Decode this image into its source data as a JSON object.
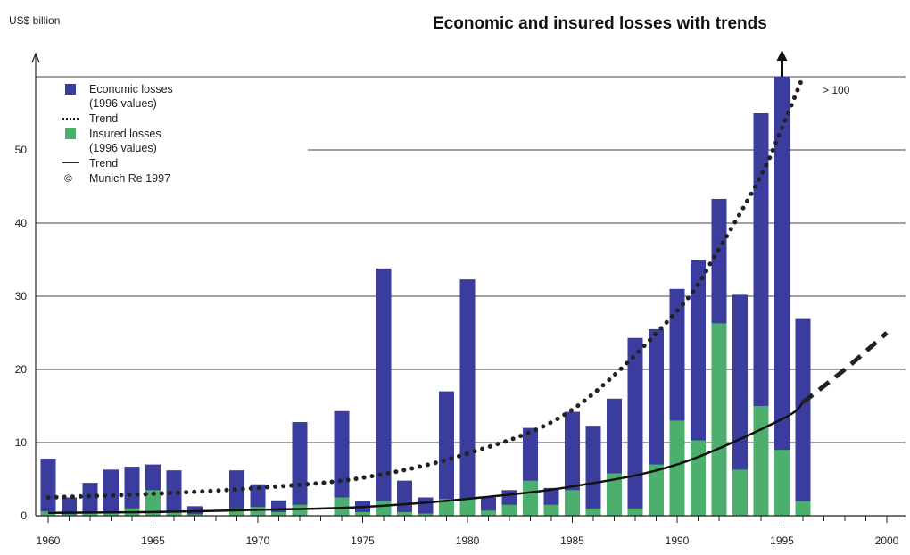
{
  "chart_data": {
    "type": "bar",
    "title": "Economic and insured losses with trends",
    "ylabel": "US$ billion",
    "ylim": [
      0,
      60
    ],
    "yticks": [
      0,
      10,
      20,
      30,
      40,
      50
    ],
    "xlim": [
      1959.5,
      2001
    ],
    "xticks": [
      1960,
      1965,
      1970,
      1975,
      1980,
      1985,
      1990,
      1995,
      2000
    ],
    "grid": true,
    "legend_position": "top-left",
    "years": [
      1960,
      1961,
      1962,
      1963,
      1964,
      1965,
      1966,
      1967,
      1968,
      1969,
      1970,
      1971,
      1972,
      1973,
      1974,
      1975,
      1976,
      1977,
      1978,
      1979,
      1980,
      1981,
      1982,
      1983,
      1984,
      1985,
      1986,
      1987,
      1988,
      1989,
      1990,
      1991,
      1992,
      1993,
      1994,
      1995,
      1996
    ],
    "series": [
      {
        "name": "Economic losses (1996 values)",
        "color": "#3a3d9e",
        "values": [
          7.8,
          2.5,
          4.5,
          6.3,
          6.7,
          7.0,
          6.2,
          1.3,
          0,
          6.2,
          4.3,
          2.1,
          12.8,
          0,
          14.3,
          2.0,
          33.8,
          4.8,
          2.5,
          17.0,
          32.3,
          2.5,
          3.5,
          12.0,
          3.8,
          14.2,
          12.3,
          16.0,
          24.3,
          25.5,
          31.0,
          35.0,
          43.3,
          30.2,
          55.0,
          60.0,
          27.0
        ]
      },
      {
        "name": "Insured losses (1996 values)",
        "color": "#4caf6e",
        "values": [
          0.6,
          0.2,
          0.4,
          0.5,
          1.0,
          3.5,
          0.5,
          0.2,
          0,
          1.0,
          1.2,
          0.5,
          1.5,
          0,
          2.5,
          0.5,
          2.0,
          0.5,
          0.3,
          2.3,
          2.4,
          0.7,
          1.5,
          4.8,
          1.5,
          3.5,
          1.0,
          5.8,
          1.0,
          7.0,
          13.0,
          10.3,
          26.3,
          6.3,
          15.0,
          9.0,
          2.0
        ]
      }
    ],
    "trends": [
      {
        "name": "Trend",
        "of": "Economic losses",
        "style": "dotted",
        "x": [
          1960,
          1965,
          1970,
          1975,
          1980,
          1985,
          1990,
          1992,
          1994,
          1995,
          1996,
          1997
        ],
        "y": [
          2.5,
          3.0,
          3.8,
          5.2,
          8.5,
          14.5,
          28.0,
          36.5,
          46.5,
          53.0,
          60.0,
          66.0
        ]
      },
      {
        "name": "Trend",
        "of": "Insured losses",
        "style": "solid-then-dashed",
        "solid_until": 1996,
        "x": [
          1960,
          1965,
          1970,
          1975,
          1980,
          1985,
          1990,
          1995,
          1996,
          1998,
          2000
        ],
        "y": [
          0.4,
          0.5,
          0.8,
          1.2,
          2.3,
          4.0,
          7.0,
          13.2,
          15.5,
          20.0,
          25.0
        ]
      }
    ],
    "annotations": [
      {
        "text": "> 100",
        "near_year": 1995
      }
    ],
    "legend": {
      "economic": "Economic losses",
      "economic_sub": "(1996 values)",
      "trend1": "Trend",
      "insured": "Insured losses",
      "insured_sub": "(1996 values)",
      "trend2": "Trend",
      "copyright_symbol": "©",
      "copyright": "Munich Re 1997"
    }
  }
}
